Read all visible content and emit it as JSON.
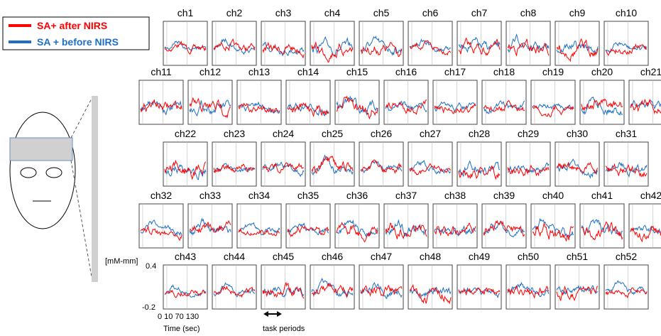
{
  "legend": [
    {
      "label": "SA+ after  NIRS",
      "color": "#ff0000"
    },
    {
      "label": "SA + before NIRS",
      "color": "#1f6fc4"
    }
  ],
  "channels": [
    "ch1",
    "ch2",
    "ch3",
    "ch4",
    "ch5",
    "ch6",
    "ch7",
    "ch8",
    "ch9",
    "ch10",
    "ch11",
    "ch12",
    "ch13",
    "ch14",
    "ch15",
    "ch16",
    "ch17",
    "ch18",
    "ch19",
    "ch20",
    "ch21",
    "ch22",
    "ch23",
    "ch24",
    "ch25",
    "ch26",
    "ch27",
    "ch28",
    "ch29",
    "ch30",
    "ch31",
    "ch32",
    "ch33",
    "ch34",
    "ch35",
    "ch36",
    "ch37",
    "ch38",
    "ch39",
    "ch40",
    "ch41",
    "ch42",
    "ch43",
    "ch44",
    "ch45",
    "ch46",
    "ch47",
    "ch48",
    "ch49",
    "ch50",
    "ch51",
    "ch52"
  ],
  "axis": {
    "unit": "[mM-mm]",
    "top": "0.4",
    "bottom": "-0.2",
    "time_ticks": "0 10 70 130",
    "time_label": "Time (sec)",
    "task": "task periods"
  }
}
